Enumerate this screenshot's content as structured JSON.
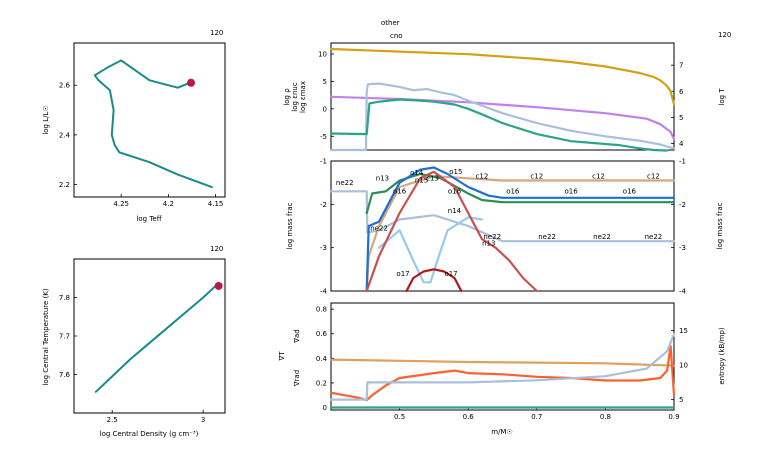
{
  "model_number": "120",
  "top_labels": {
    "other": "other",
    "cno": "cno"
  },
  "colors": {
    "hr_track": "#1a8a8a",
    "marker": "#c0144c",
    "rho": "#c080f0",
    "eps_nuc": "#2aa58a",
    "eps_max": "#a8c0dc",
    "logT": "#d4a017",
    "he4": "#2e8b57",
    "c12": "#d2a880",
    "o16": "#1e6fd0",
    "ne22": "#a8c0dc",
    "o14": "#1e6fd0",
    "o15": "#1e6fd0",
    "n13": "#c85050",
    "n14": "#98c8f0",
    "f17": "#b01818",
    "grad_ad": "#e0a060",
    "grad_rad": "#ff6030",
    "grad_T": "#e04020",
    "entropy": "#a8c0dc"
  },
  "charts": {
    "hr": {
      "type": "line",
      "xlabel": "log Teff",
      "ylabel": "log L/L☉",
      "xlim": [
        4.3,
        4.14
      ],
      "ylim": [
        2.15,
        2.77
      ],
      "xticks": [
        "4.25",
        "4.2",
        "4.15"
      ],
      "yticks": [
        "2.2",
        "2.4",
        "2.6"
      ],
      "x": [
        4.177,
        4.19,
        4.22,
        4.235,
        4.25,
        4.265,
        4.278,
        4.274,
        4.262,
        4.258,
        4.26,
        4.257,
        4.252,
        4.22,
        4.19,
        4.154
      ],
      "y": [
        2.61,
        2.59,
        2.62,
        2.66,
        2.7,
        2.67,
        2.64,
        2.62,
        2.58,
        2.5,
        2.4,
        2.36,
        2.33,
        2.29,
        2.24,
        2.19
      ],
      "current": [
        4.176,
        2.61
      ]
    },
    "center": {
      "type": "line",
      "xlabel": "log Central Density (g cm⁻³)",
      "ylabel": "log Central Temperature (K)",
      "xlim": [
        2.29,
        3.12
      ],
      "ylim": [
        7.5,
        7.9
      ],
      "xticks": [
        "2.5",
        "3"
      ],
      "yticks": [
        "7.6",
        "7.7",
        "7.8"
      ],
      "x": [
        2.41,
        2.5,
        2.6,
        2.7,
        2.8,
        2.9,
        3.0,
        3.08
      ],
      "y": [
        7.555,
        7.595,
        7.64,
        7.68,
        7.72,
        7.76,
        7.8,
        7.835
      ],
      "current": [
        3.085,
        7.83
      ]
    },
    "profiles": {
      "xlabel": "m/M☉",
      "xlim": [
        0.4,
        0.9
      ],
      "xticks": [
        "0.5",
        "0.6",
        "0.7",
        "0.8",
        "0.9"
      ],
      "panel1": {
        "type": "line",
        "ylim": [
          -7.5,
          12
        ],
        "yticks": [
          "10",
          "5",
          "0",
          "-5"
        ],
        "ylabels": [
          "log ρ",
          "log εnuc",
          "log εmax"
        ],
        "right_label": "log T",
        "right_ylim": [
          3.75,
          7.85
        ],
        "right_yticks": [
          "7",
          "6",
          "5",
          "4"
        ],
        "series": [
          {
            "key": "rho",
            "x": [
              0.4,
              0.5,
              0.6,
              0.7,
              0.8,
              0.86,
              0.88,
              0.895,
              0.9
            ],
            "y": [
              2.2,
              1.8,
              1.2,
              0.3,
              -0.8,
              -1.8,
              -2.8,
              -4.2,
              -5.5
            ]
          },
          {
            "key": "eps_max",
            "x": [
              0.4,
              0.451,
              0.452,
              0.453,
              0.454,
              0.47,
              0.5,
              0.52,
              0.54,
              0.56,
              0.58,
              0.6,
              0.65,
              0.7,
              0.75,
              0.8,
              0.85,
              0.88,
              0.9
            ],
            "y": [
              -7.5,
              -7.5,
              3,
              4,
              4.5,
              4.6,
              4.0,
              3.4,
              3.6,
              3.0,
              2.5,
              1.5,
              -0.8,
              -2.6,
              -4.0,
              -5.0,
              -5.8,
              -6.5,
              -7.2
            ]
          },
          {
            "key": "eps_nuc",
            "x": [
              0.4,
              0.452,
              0.456,
              0.47,
              0.5,
              0.53,
              0.55,
              0.58,
              0.6,
              0.62,
              0.65,
              0.7,
              0.75,
              0.8,
              0.82,
              0.85,
              0.87,
              0.89
            ],
            "y": [
              -4.5,
              -4.6,
              1.0,
              1.3,
              1.7,
              1.5,
              1.3,
              0.8,
              0.0,
              -1.0,
              -2.6,
              -4.6,
              -5.9,
              -6.4,
              -6.6,
              -7.2,
              -7.5,
              -7.6
            ]
          }
        ],
        "right_series": [
          {
            "key": "logT",
            "x": [
              0.4,
              0.5,
              0.6,
              0.7,
              0.75,
              0.8,
              0.85,
              0.87,
              0.88,
              0.89,
              0.895,
              0.9
            ],
            "y": [
              7.62,
              7.52,
              7.42,
              7.24,
              7.12,
              6.95,
              6.7,
              6.55,
              6.42,
              6.2,
              6.0,
              5.5
            ]
          }
        ]
      },
      "panel2": {
        "type": "line",
        "ylim": [
          -4,
          -1
        ],
        "yticks": [
          "-1",
          "-2",
          "-3",
          "-4"
        ],
        "ylabel": "log mass frac",
        "right_ylabel": "log mass frac",
        "series": [
          {
            "key": "ne22",
            "x": [
              0.4,
              0.452,
              0.453,
              0.47,
              0.5,
              0.55,
              0.6,
              0.65,
              0.7,
              0.8,
              0.9
            ],
            "y": [
              -1.7,
              -1.7,
              -2.65,
              -2.6,
              -2.35,
              -2.25,
              -2.5,
              -2.85,
              -2.85,
              -2.85,
              -2.85
            ]
          },
          {
            "key": "c12",
            "x": [
              0.452,
              0.455,
              0.47,
              0.5,
              0.55,
              0.6,
              0.65,
              0.7,
              0.8,
              0.9
            ],
            "y": [
              -4.0,
              -3.2,
              -2.5,
              -1.6,
              -1.35,
              -1.4,
              -1.45,
              -1.45,
              -1.45,
              -1.45
            ]
          },
          {
            "key": "he4",
            "x": [
              0.452,
              0.46,
              0.48,
              0.5,
              0.53,
              0.56,
              0.6,
              0.62,
              0.65,
              0.7,
              0.8,
              0.9
            ],
            "y": [
              -2.2,
              -1.75,
              -1.7,
              -1.45,
              -1.3,
              -1.4,
              -1.75,
              -1.9,
              -1.95,
              -1.95,
              -1.95,
              -1.95
            ]
          },
          {
            "key": "o16",
            "x": [
              0.452,
              0.455,
              0.47,
              0.5,
              0.53,
              0.55,
              0.57,
              0.6,
              0.63,
              0.65,
              0.7,
              0.8,
              0.9
            ],
            "y": [
              -4.0,
              -2.5,
              -2.4,
              -1.5,
              -1.2,
              -1.15,
              -1.3,
              -1.6,
              -1.8,
              -1.85,
              -1.85,
              -1.85,
              -1.85
            ]
          },
          {
            "key": "n14",
            "x": [
              0.47,
              0.5,
              0.52,
              0.535,
              0.545,
              0.555,
              0.57,
              0.6,
              0.62
            ],
            "y": [
              -3.0,
              -2.6,
              -3.3,
              -3.8,
              -3.8,
              -3.3,
              -2.6,
              -2.3,
              -2.35
            ]
          },
          {
            "key": "n13",
            "x": [
              0.452,
              0.47,
              0.5,
              0.53,
              0.55,
              0.58,
              0.6,
              0.62,
              0.64,
              0.66,
              0.68,
              0.7
            ],
            "y": [
              -4.0,
              -3.2,
              -2.2,
              -1.4,
              -1.25,
              -1.6,
              -2.2,
              -2.8,
              -3.0,
              -3.3,
              -3.7,
              -4.0
            ]
          },
          {
            "key": "f17",
            "x": [
              0.51,
              0.52,
              0.535,
              0.55,
              0.565,
              0.58,
              0.59
            ],
            "y": [
              -4.0,
              -3.7,
              -3.55,
              -3.5,
              -3.55,
              -3.7,
              -4.0
            ]
          }
        ],
        "labels": [
          {
            "text": "o14",
            "key": "o14",
            "x": 0.525,
            "y": -1.32
          },
          {
            "text": "n15",
            "key": "o15",
            "x": 0.532,
            "y": -1.5
          },
          {
            "text": "o15",
            "key": "o15",
            "x": 0.582,
            "y": -1.3
          },
          {
            "text": "c13",
            "key": "c12",
            "x": 0.548,
            "y": -1.45
          },
          {
            "text": "o16",
            "key": "o16",
            "x": 0.5,
            "y": -1.75
          },
          {
            "text": "o16",
            "key": "o16",
            "x": 0.58,
            "y": -1.75
          },
          {
            "text": "o16",
            "key": "o16",
            "x": 0.665,
            "y": -1.75
          },
          {
            "text": "o16",
            "key": "o16",
            "x": 0.75,
            "y": -1.75
          },
          {
            "text": "o16",
            "key": "o16",
            "x": 0.835,
            "y": -1.75
          },
          {
            "text": "c12",
            "key": "c12",
            "x": 0.62,
            "y": -1.4
          },
          {
            "text": "c12",
            "key": "c12",
            "x": 0.7,
            "y": -1.4
          },
          {
            "text": "c12",
            "key": "c12",
            "x": 0.79,
            "y": -1.4
          },
          {
            "text": "c12",
            "key": "c12",
            "x": 0.87,
            "y": -1.4
          },
          {
            "text": "ne22",
            "key": "ne22",
            "x": 0.42,
            "y": -1.55
          },
          {
            "text": "ne22",
            "key": "ne22",
            "x": 0.47,
            "y": -2.6
          },
          {
            "text": "n14",
            "key": "n14",
            "x": 0.58,
            "y": -2.2
          },
          {
            "text": "ne22",
            "key": "ne22",
            "x": 0.635,
            "y": -2.8
          },
          {
            "text": "ne22",
            "key": "ne22",
            "x": 0.715,
            "y": -2.8
          },
          {
            "text": "ne22",
            "key": "ne22",
            "x": 0.795,
            "y": -2.8
          },
          {
            "text": "ne22",
            "key": "ne22",
            "x": 0.87,
            "y": -2.8
          },
          {
            "text": "n13",
            "key": "n13",
            "x": 0.63,
            "y": -2.95
          },
          {
            "text": "o17",
            "key": "f17",
            "x": 0.575,
            "y": -3.65
          },
          {
            "text": "o17",
            "key": "f17",
            "x": 0.505,
            "y": -3.65
          },
          {
            "text": "n13",
            "key": "n13",
            "x": 0.475,
            "y": -1.45
          }
        ]
      },
      "panel3": {
        "type": "line",
        "ylim": [
          -0.02,
          0.85
        ],
        "yticks": [
          "0.8",
          "0.6",
          "0.4",
          "0.2",
          "0"
        ],
        "ylabels": [
          "∇T",
          "∇ad",
          "∇rad"
        ],
        "right_ylabel": "entropy (kB/mp)",
        "right_ylim": [
          3.5,
          19
        ],
        "right_yticks": [
          "15",
          "10",
          "5"
        ],
        "series": [
          {
            "key": "grad_ad",
            "x": [
              0.4,
              0.5,
              0.6,
              0.7,
              0.8,
              0.9
            ],
            "y": [
              0.39,
              0.38,
              0.37,
              0.365,
              0.36,
              0.34
            ]
          },
          {
            "key": "grad_rad",
            "x": [
              0.4,
              0.44,
              0.452,
              0.46,
              0.48,
              0.5,
              0.55,
              0.58,
              0.6,
              0.65,
              0.7,
              0.75,
              0.8,
              0.85,
              0.88,
              0.89,
              0.895,
              0.9
            ],
            "y": [
              0.12,
              0.08,
              0.06,
              0.1,
              0.18,
              0.24,
              0.28,
              0.3,
              0.28,
              0.27,
              0.25,
              0.24,
              0.22,
              0.22,
              0.24,
              0.3,
              0.5,
              0.1
            ]
          },
          {
            "key": "eps_nuc",
            "x": [
              0.4,
              0.9
            ],
            "y": [
              0.0,
              0.0
            ]
          }
        ],
        "right_series": [
          {
            "key": "entropy",
            "x": [
              0.4,
              0.452,
              0.453,
              0.5,
              0.6,
              0.7,
              0.8,
              0.86,
              0.89,
              0.9
            ],
            "y": [
              5.0,
              5.0,
              7.5,
              7.5,
              7.5,
              7.8,
              8.4,
              9.5,
              12.0,
              14.5
            ]
          }
        ]
      }
    }
  }
}
